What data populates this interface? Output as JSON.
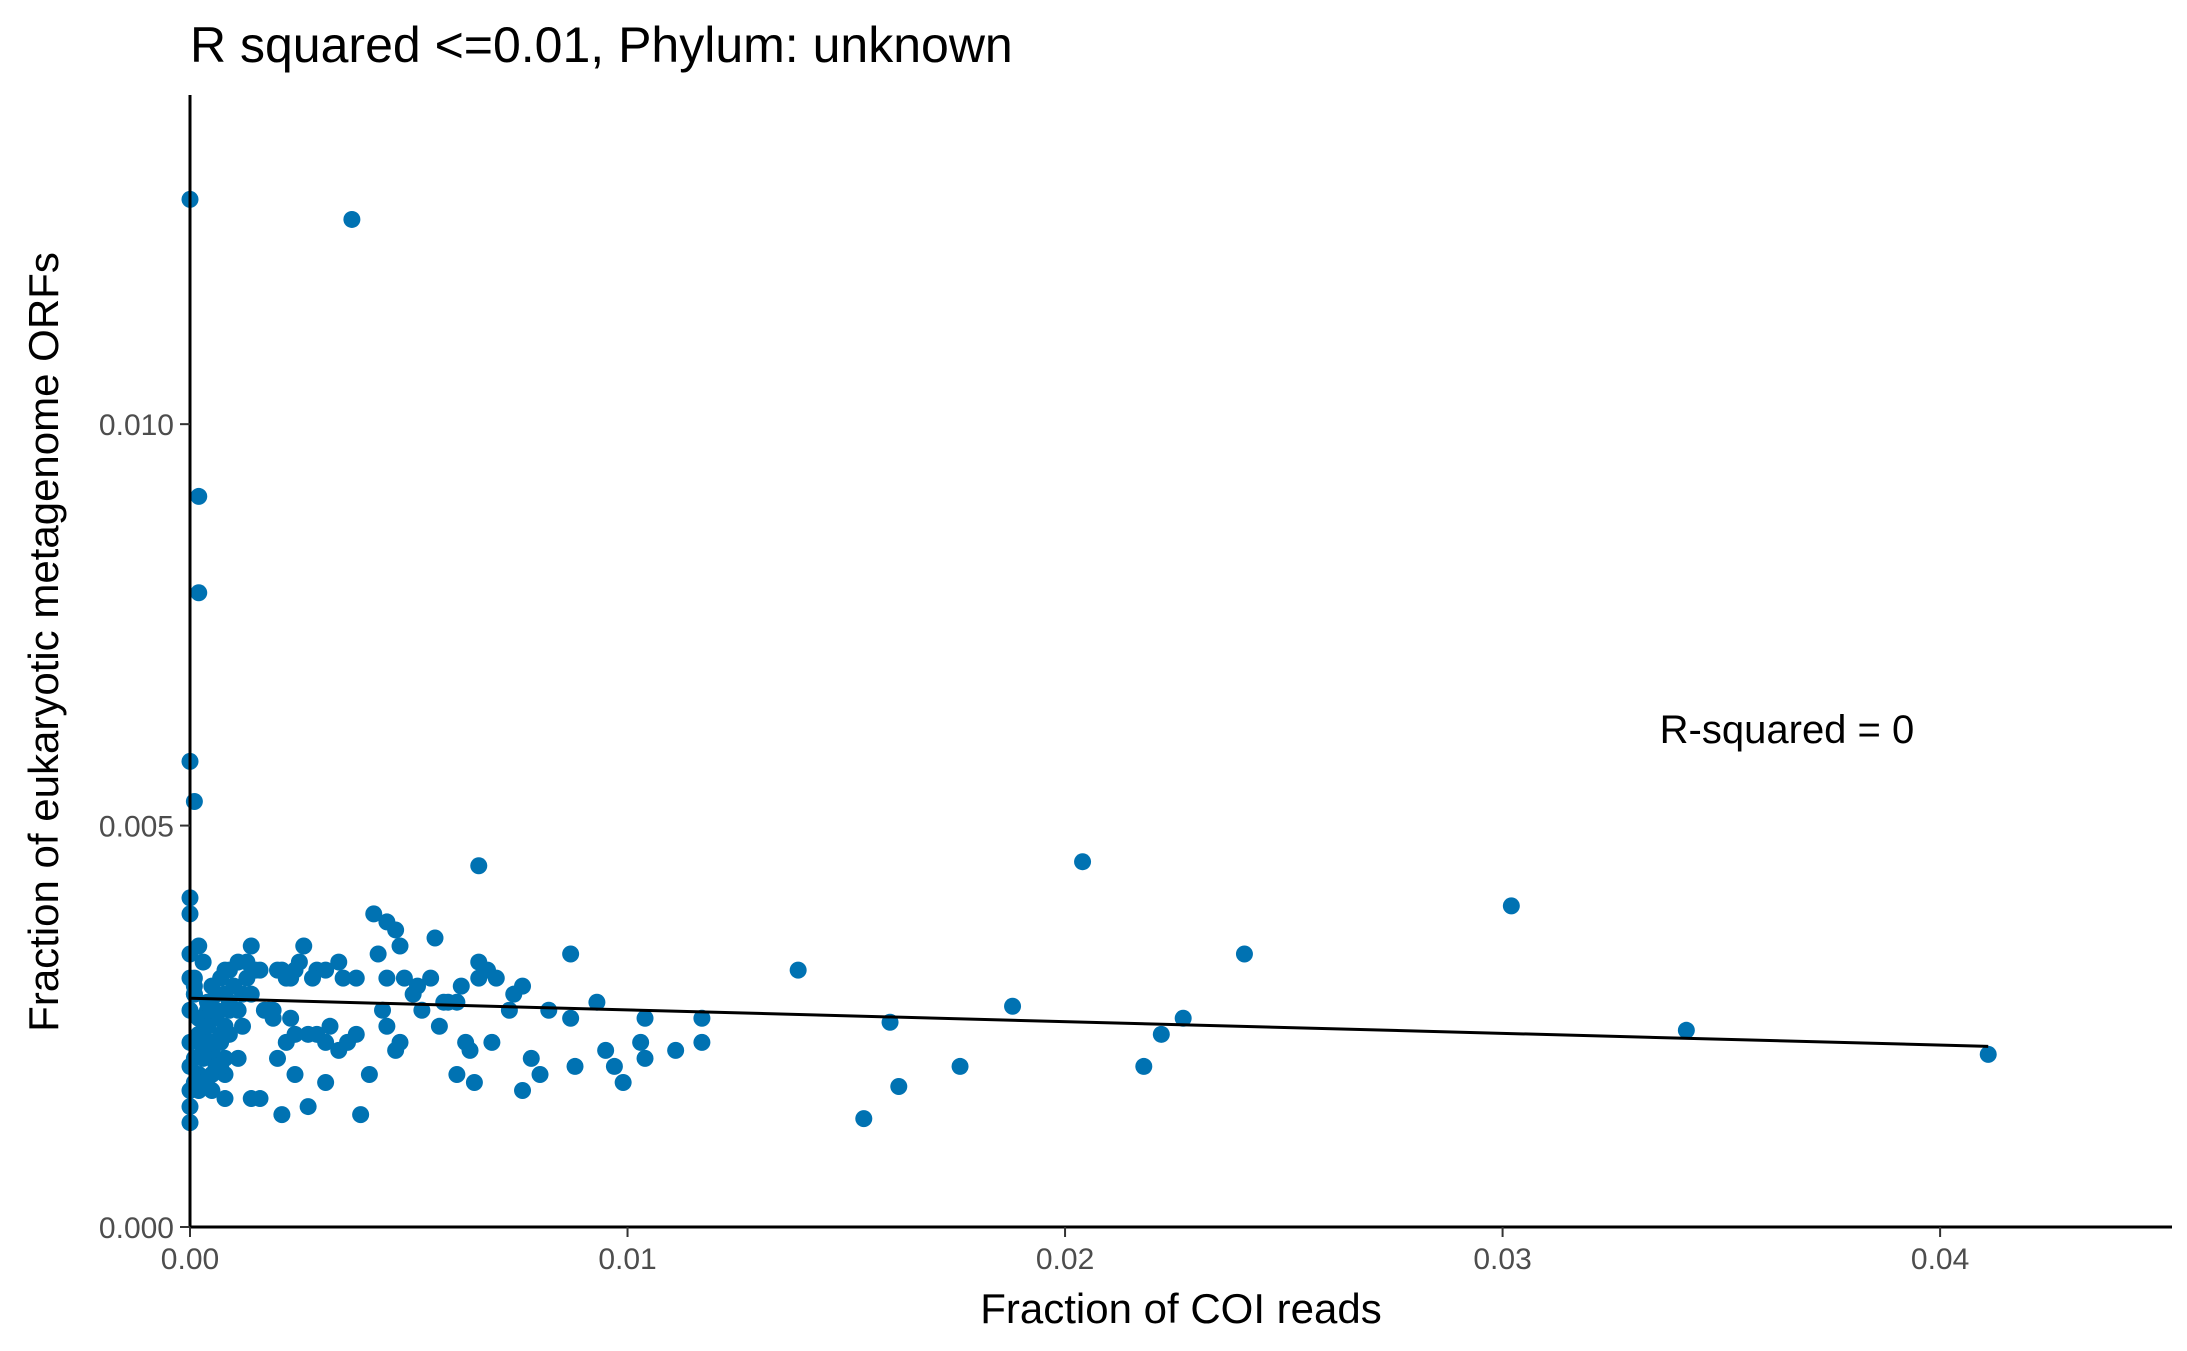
{
  "chart_data": {
    "type": "scatter",
    "title": "R squared <=0.01, Phylum:  unknown",
    "xlabel": "Fraction of COI reads",
    "ylabel": "Fraction of eukaryotic metagenome ORFs",
    "xlim": [
      0,
      0.0453
    ],
    "ylim": [
      0,
      0.0141
    ],
    "xticks": [
      0.0,
      0.01,
      0.02,
      0.03,
      0.04
    ],
    "xtick_labels": [
      "0.00",
      "0.01",
      "0.02",
      "0.03",
      "0.04"
    ],
    "yticks": [
      0.0,
      0.005,
      0.01
    ],
    "ytick_labels": [
      "0.000",
      "0.005",
      "0.010"
    ],
    "grid": false,
    "legend": "none",
    "point_color": "#0072B2",
    "line_color": "#000000",
    "annotation": {
      "text": "R-squared =  0",
      "x": 0.0365,
      "y": 0.0062
    },
    "fit_line": {
      "x": [
        0.0,
        0.0411
      ],
      "y": [
        0.00285,
        0.00225
      ]
    },
    "points": {
      "x": [
        0.0,
        0.0037,
        0.0002,
        0.0002,
        0.0,
        0.0001,
        0.0066,
        0.0204,
        0.0302,
        0.0,
        0.0,
        0.0042,
        0.0045,
        0.0047,
        0.0056,
        0.0026,
        0.0014,
        0.0048,
        0.0087,
        0.0241,
        0.0139,
        0.0043,
        0.0068,
        0.0066,
        0.0031,
        0.0034,
        0.002,
        0.0022,
        0.0025,
        0.0029,
        0.0035,
        0.0038,
        0.0045,
        0.0049,
        0.0055,
        0.0062,
        0.0076,
        0.0074,
        0.0051,
        0.0066,
        0.0059,
        0.0061,
        0.0093,
        0.0073,
        0.0082,
        0.0087,
        0.0104,
        0.0117,
        0.0188,
        0.0227,
        0.016,
        0.0222,
        0.0342,
        0.0411,
        0.0117,
        0.0103,
        0.0095,
        0.0111,
        0.0104,
        0.0097,
        0.0099,
        0.0088,
        0.008,
        0.0078,
        0.0076,
        0.0069,
        0.0065,
        0.0061,
        0.0063,
        0.0057,
        0.0053,
        0.0048,
        0.0045,
        0.0047,
        0.0041,
        0.0038,
        0.0034,
        0.0031,
        0.0031,
        0.0029,
        0.0027,
        0.0024,
        0.0022,
        0.0024,
        0.0019,
        0.0023,
        0.002,
        0.0016,
        0.0014,
        0.0011,
        0.0012,
        0.0009,
        0.0008,
        0.0006,
        0.0005,
        0.0004,
        0.0003,
        0.0001,
        0.0002,
        0.0003,
        0.0004,
        0.0005,
        0.0006,
        0.0007,
        0.0008,
        0.0009,
        0.001,
        0.0011,
        0.0013,
        0.0015,
        0.0017,
        0.0019,
        0.0021,
        0.0023,
        0.0001,
        0.0002,
        0.0003,
        0.0004,
        0.0005,
        0.0006,
        0.0007,
        0.0008,
        0.0009,
        0.0001,
        0.0002,
        0.0003,
        0.0004,
        0.0005,
        0.0006,
        0.0007,
        0.0008,
        0.0001,
        0.0002,
        0.0003,
        0.0004,
        0.0005,
        0.0001,
        0.0002,
        0.0003,
        0.0004,
        0.0,
        0.0,
        0.0,
        0.0,
        0.0,
        0.0,
        0.0,
        0.0,
        0.0005,
        0.0008,
        0.0014,
        0.0021,
        0.0027,
        0.0039,
        0.0154,
        0.0162,
        0.0176,
        0.0218,
        0.0009,
        0.0013,
        0.0018,
        0.0024,
        0.0028,
        0.0032,
        0.0036,
        0.0044,
        0.0052,
        0.0058,
        0.0064,
        0.007,
        0.0007,
        0.0004,
        0.0002,
        0.0001,
        0.0006,
        0.0012,
        0.0016,
        0.0003,
        0.0005,
        0.0008,
        0.0011
      ],
      "y": [
        0.0128,
        0.01255,
        0.0091,
        0.0079,
        0.0058,
        0.0053,
        0.0045,
        0.00455,
        0.004,
        0.0041,
        0.0039,
        0.0039,
        0.0038,
        0.0037,
        0.0036,
        0.0035,
        0.0035,
        0.0035,
        0.0034,
        0.0034,
        0.0032,
        0.0034,
        0.0032,
        0.0033,
        0.0032,
        0.0033,
        0.0032,
        0.0031,
        0.0033,
        0.0032,
        0.0031,
        0.0031,
        0.0031,
        0.0031,
        0.0031,
        0.003,
        0.003,
        0.0029,
        0.0029,
        0.0031,
        0.0028,
        0.0028,
        0.0028,
        0.0027,
        0.0027,
        0.0026,
        0.0026,
        0.0026,
        0.00275,
        0.0026,
        0.00255,
        0.0024,
        0.00245,
        0.00215,
        0.0023,
        0.0023,
        0.0022,
        0.0022,
        0.0021,
        0.002,
        0.0018,
        0.002,
        0.0019,
        0.0021,
        0.0017,
        0.0023,
        0.0018,
        0.0019,
        0.0023,
        0.0025,
        0.0027,
        0.0023,
        0.0025,
        0.0022,
        0.0019,
        0.0024,
        0.0022,
        0.0018,
        0.0023,
        0.0024,
        0.0024,
        0.0024,
        0.0023,
        0.0019,
        0.0027,
        0.0026,
        0.0021,
        0.0016,
        0.0029,
        0.0033,
        0.0025,
        0.0027,
        0.0032,
        0.0029,
        0.003,
        0.0028,
        0.0033,
        0.0031,
        0.0026,
        0.0024,
        0.0022,
        0.0021,
        0.0026,
        0.0031,
        0.0029,
        0.0024,
        0.003,
        0.0027,
        0.0031,
        0.0032,
        0.0027,
        0.0026,
        0.0032,
        0.0031,
        0.0021,
        0.0019,
        0.0023,
        0.0025,
        0.0022,
        0.0027,
        0.0023,
        0.0021,
        0.0028,
        0.0029,
        0.0024,
        0.0022,
        0.0027,
        0.0026,
        0.002,
        0.0024,
        0.0019,
        0.0018,
        0.0017,
        0.0021,
        0.0023,
        0.0019,
        0.003,
        0.0026,
        0.0022,
        0.0025,
        0.0034,
        0.0031,
        0.0027,
        0.0023,
        0.002,
        0.0017,
        0.0015,
        0.0013,
        0.0017,
        0.0016,
        0.0016,
        0.0014,
        0.0015,
        0.0014,
        0.00135,
        0.00175,
        0.002,
        0.002,
        0.0032,
        0.0033,
        0.0027,
        0.0032,
        0.0031,
        0.0025,
        0.0023,
        0.0027,
        0.003,
        0.0028,
        0.0022,
        0.0031,
        0.002,
        0.0025,
        0.0035,
        0.0029,
        0.002,
        0.0029,
        0.0032,
        0.0018,
        0.0023,
        0.0025,
        0.0021
      ]
    }
  }
}
